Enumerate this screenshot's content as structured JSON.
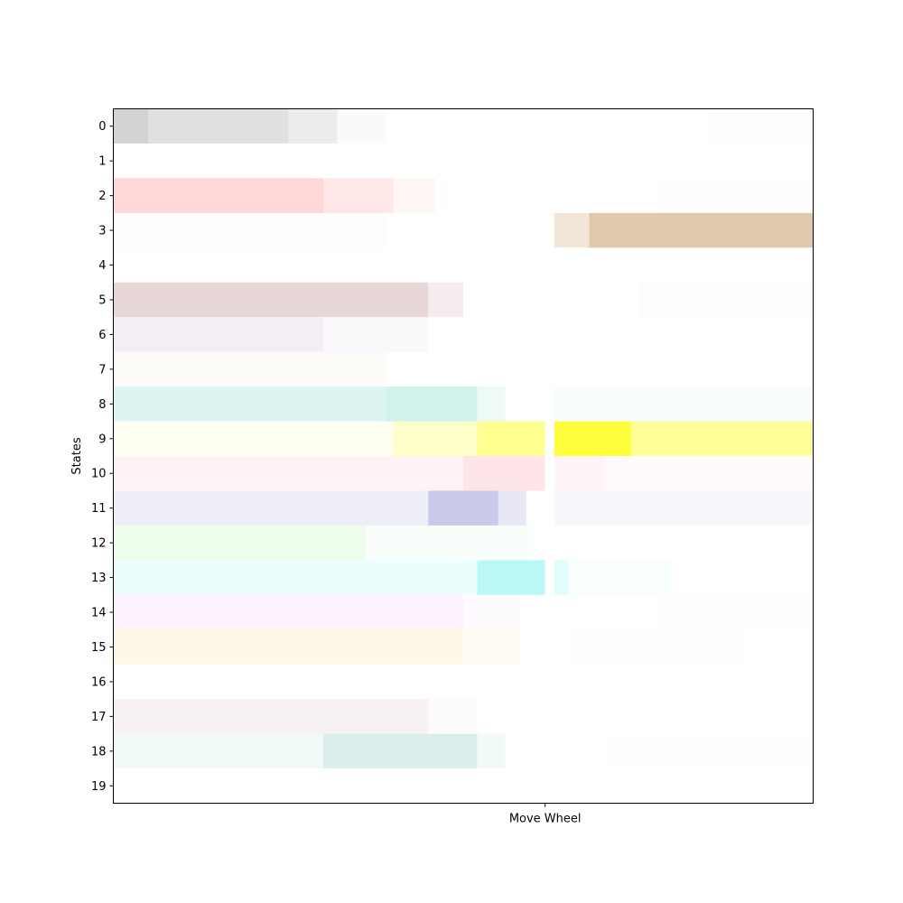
{
  "chart_data": {
    "type": "heatmap",
    "ylabel": "States",
    "xlabel": "",
    "x_ticks": [
      "Move Wheel"
    ],
    "y_ticks": [
      "0",
      "1",
      "2",
      "3",
      "4",
      "5",
      "6",
      "7",
      "8",
      "9",
      "10",
      "11",
      "12",
      "13",
      "14",
      "15",
      "16",
      "17",
      "18",
      "19"
    ],
    "time_range": [
      0,
      1
    ],
    "marker_position": 0.617,
    "marker_gap": 0.013,
    "rows": [
      {
        "state": "0",
        "color": "#d3d3d3",
        "segments": [
          {
            "start": 0.0,
            "end": 0.05,
            "intensity": 1.0
          },
          {
            "start": 0.05,
            "end": 0.25,
            "intensity": 0.7
          },
          {
            "start": 0.25,
            "end": 0.32,
            "intensity": 0.4
          },
          {
            "start": 0.32,
            "end": 0.39,
            "intensity": 0.12
          },
          {
            "start": 0.85,
            "end": 1.0,
            "intensity": 0.05
          }
        ]
      },
      {
        "state": "1",
        "color": "#ffffff",
        "segments": []
      },
      {
        "state": "2",
        "color": "#ffd0d0",
        "segments": [
          {
            "start": 0.0,
            "end": 0.3,
            "intensity": 0.85
          },
          {
            "start": 0.3,
            "end": 0.4,
            "intensity": 0.5
          },
          {
            "start": 0.4,
            "end": 0.46,
            "intensity": 0.2
          },
          {
            "start": 0.78,
            "end": 1.0,
            "intensity": 0.04
          }
        ]
      },
      {
        "state": "3",
        "color": "#dfc7a8",
        "segments": [
          {
            "start": 0.0,
            "end": 0.39,
            "intensity": 0.03
          },
          {
            "start": 0.63,
            "end": 0.68,
            "intensity": 0.45
          },
          {
            "start": 0.68,
            "end": 1.0,
            "intensity": 0.95
          }
        ]
      },
      {
        "state": "4",
        "color": "#ffffff",
        "segments": []
      },
      {
        "state": "5",
        "color": "#e6d3d3",
        "segments": [
          {
            "start": 0.0,
            "end": 0.45,
            "intensity": 0.9
          },
          {
            "start": 0.45,
            "end": 0.5,
            "intensity": 0.4
          },
          {
            "start": 0.75,
            "end": 1.0,
            "intensity": 0.05
          }
        ]
      },
      {
        "state": "6",
        "color": "#f2ecf4",
        "segments": [
          {
            "start": 0.0,
            "end": 0.3,
            "intensity": 0.9
          },
          {
            "start": 0.3,
            "end": 0.45,
            "intensity": 0.35
          }
        ]
      },
      {
        "state": "7",
        "color": "#fcf9f4",
        "segments": [
          {
            "start": 0.0,
            "end": 0.39,
            "intensity": 0.6
          }
        ]
      },
      {
        "state": "8",
        "color": "#d2f2ee",
        "segments": [
          {
            "start": 0.0,
            "end": 0.39,
            "intensity": 0.75
          },
          {
            "start": 0.39,
            "end": 0.52,
            "intensity": 1.0
          },
          {
            "start": 0.52,
            "end": 0.56,
            "intensity": 0.4
          },
          {
            "start": 0.63,
            "end": 1.0,
            "intensity": 0.15
          }
        ]
      },
      {
        "state": "9",
        "color": "#ffff33",
        "segments": [
          {
            "start": 0.0,
            "end": 0.4,
            "intensity": 0.07
          },
          {
            "start": 0.4,
            "end": 0.52,
            "intensity": 0.25
          },
          {
            "start": 0.52,
            "end": 0.617,
            "intensity": 0.55
          },
          {
            "start": 0.63,
            "end": 0.74,
            "intensity": 0.95
          },
          {
            "start": 0.74,
            "end": 1.0,
            "intensity": 0.5
          }
        ]
      },
      {
        "state": "10",
        "color": "#ffd8e0",
        "segments": [
          {
            "start": 0.0,
            "end": 0.5,
            "intensity": 0.3
          },
          {
            "start": 0.5,
            "end": 0.617,
            "intensity": 0.7
          },
          {
            "start": 0.63,
            "end": 0.7,
            "intensity": 0.25
          },
          {
            "start": 0.7,
            "end": 1.0,
            "intensity": 0.12
          }
        ]
      },
      {
        "state": "11",
        "color": "#c4c4e6",
        "segments": [
          {
            "start": 0.0,
            "end": 0.45,
            "intensity": 0.3
          },
          {
            "start": 0.45,
            "end": 0.55,
            "intensity": 0.9
          },
          {
            "start": 0.55,
            "end": 0.59,
            "intensity": 0.4
          },
          {
            "start": 0.63,
            "end": 1.0,
            "intensity": 0.12
          }
        ]
      },
      {
        "state": "12",
        "color": "#e4fce4",
        "segments": [
          {
            "start": 0.0,
            "end": 0.36,
            "intensity": 0.7
          },
          {
            "start": 0.36,
            "end": 0.6,
            "intensity": 0.2
          }
        ]
      },
      {
        "state": "13",
        "color": "#b3f7f7",
        "segments": [
          {
            "start": 0.0,
            "end": 0.52,
            "intensity": 0.25
          },
          {
            "start": 0.52,
            "end": 0.617,
            "intensity": 0.9
          },
          {
            "start": 0.63,
            "end": 0.65,
            "intensity": 0.4
          },
          {
            "start": 0.65,
            "end": 0.8,
            "intensity": 0.08
          }
        ]
      },
      {
        "state": "14",
        "color": "#fbe2fb",
        "segments": [
          {
            "start": 0.0,
            "end": 0.5,
            "intensity": 0.45
          },
          {
            "start": 0.5,
            "end": 0.58,
            "intensity": 0.15
          },
          {
            "start": 0.78,
            "end": 1.0,
            "intensity": 0.04
          }
        ]
      },
      {
        "state": "15",
        "color": "#fff2d4",
        "segments": [
          {
            "start": 0.0,
            "end": 0.5,
            "intensity": 0.55
          },
          {
            "start": 0.5,
            "end": 0.58,
            "intensity": 0.3
          },
          {
            "start": 0.65,
            "end": 0.9,
            "intensity": 0.05
          }
        ]
      },
      {
        "state": "16",
        "color": "#ffffff",
        "segments": []
      },
      {
        "state": "17",
        "color": "#f2e6e6",
        "segments": [
          {
            "start": 0.0,
            "end": 0.45,
            "intensity": 0.55
          },
          {
            "start": 0.45,
            "end": 0.52,
            "intensity": 0.2
          }
        ]
      },
      {
        "state": "18",
        "color": "#d4ecea",
        "segments": [
          {
            "start": 0.0,
            "end": 0.3,
            "intensity": 0.3
          },
          {
            "start": 0.3,
            "end": 0.52,
            "intensity": 0.85
          },
          {
            "start": 0.52,
            "end": 0.56,
            "intensity": 0.3
          },
          {
            "start": 0.7,
            "end": 1.0,
            "intensity": 0.04
          }
        ]
      },
      {
        "state": "19",
        "color": "#ffffff",
        "segments": []
      }
    ]
  }
}
